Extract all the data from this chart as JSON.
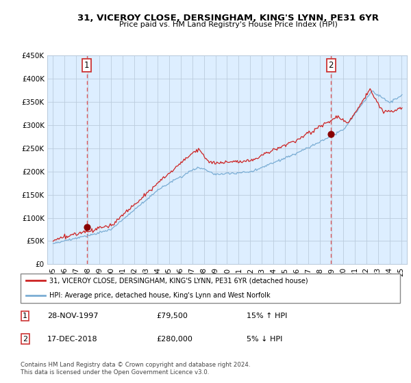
{
  "title": "31, VICEROY CLOSE, DERSINGHAM, KING'S LYNN, PE31 6YR",
  "subtitle": "Price paid vs. HM Land Registry's House Price Index (HPI)",
  "legend_line1": "31, VICEROY CLOSE, DERSINGHAM, KING'S LYNN, PE31 6YR (detached house)",
  "legend_line2": "HPI: Average price, detached house, King's Lynn and West Norfolk",
  "sale1_date": "28-NOV-1997",
  "sale1_price": "£79,500",
  "sale1_hpi": "15% ↑ HPI",
  "sale2_date": "17-DEC-2018",
  "sale2_price": "£280,000",
  "sale2_hpi": "5% ↓ HPI",
  "footer": "Contains HM Land Registry data © Crown copyright and database right 2024.\nThis data is licensed under the Open Government Licence v3.0.",
  "hpi_color": "#7aadd4",
  "price_color": "#cc2222",
  "dot_color": "#880000",
  "vline_color": "#dd4444",
  "sale1_x": 1997.91,
  "sale2_x": 2018.96,
  "sale1_y": 79500,
  "sale2_y": 280000,
  "ylim_min": 0,
  "ylim_max": 450000,
  "xlim_min": 1994.5,
  "xlim_max": 2025.5,
  "yticks": [
    0,
    50000,
    100000,
    150000,
    200000,
    250000,
    300000,
    350000,
    400000,
    450000
  ],
  "ytick_labels": [
    "£0",
    "£50K",
    "£100K",
    "£150K",
    "£200K",
    "£250K",
    "£300K",
    "£350K",
    "£400K",
    "£450K"
  ],
  "xticks": [
    1995,
    1996,
    1997,
    1998,
    1999,
    2000,
    2001,
    2002,
    2003,
    2004,
    2005,
    2006,
    2007,
    2008,
    2009,
    2010,
    2011,
    2012,
    2013,
    2014,
    2015,
    2016,
    2017,
    2018,
    2019,
    2020,
    2021,
    2022,
    2023,
    2024,
    2025
  ],
  "chart_bg": "#ddeeff",
  "background_color": "#ffffff",
  "grid_color": "#bbccdd"
}
